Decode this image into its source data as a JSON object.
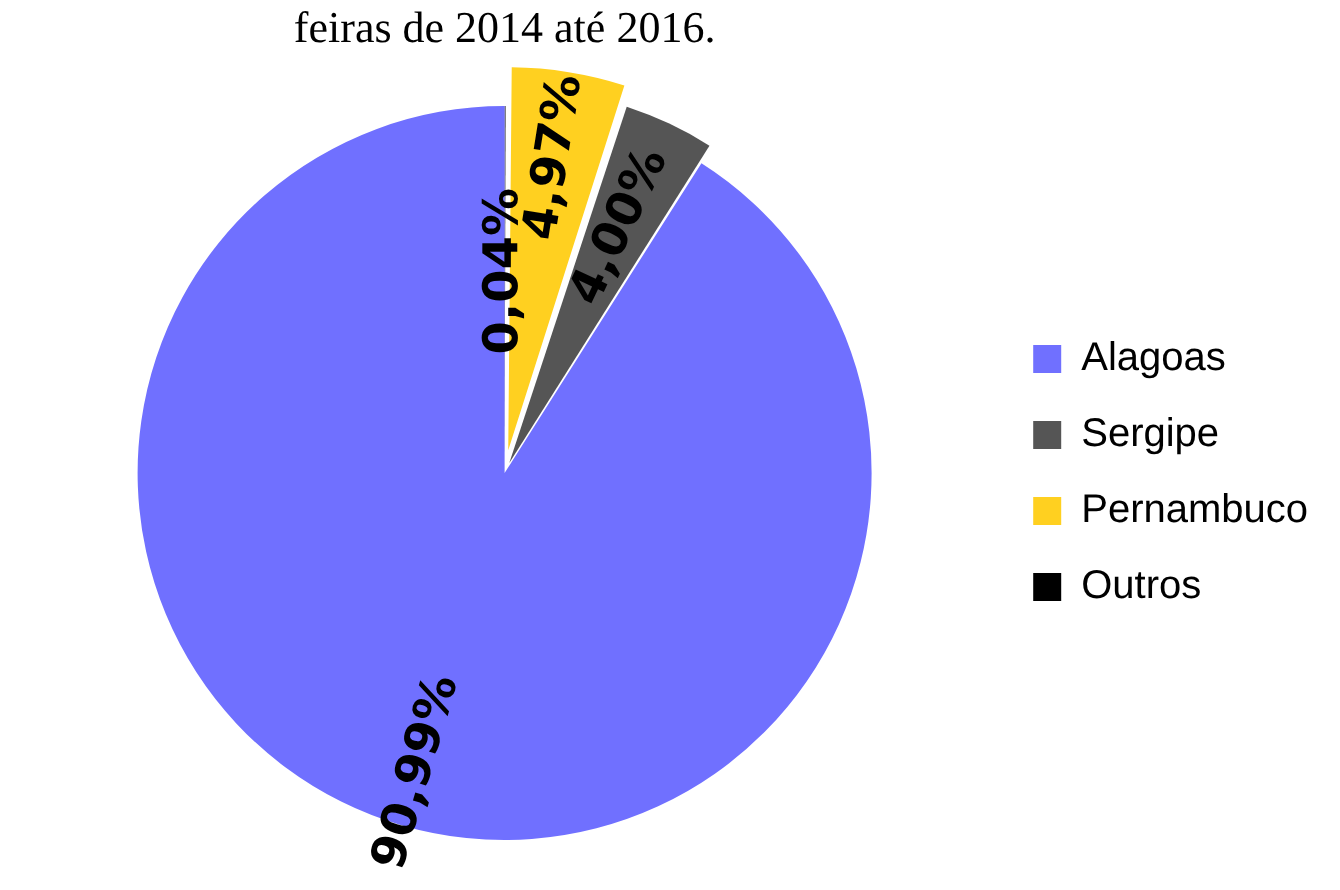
{
  "chart_data": {
    "type": "pie",
    "title": "feiras de 2014 até 2016.",
    "categories": [
      "Alagoas",
      "Sergipe",
      "Pernambuco",
      "Outros"
    ],
    "values": [
      90.99,
      4.0,
      4.97,
      0.04
    ],
    "colors": [
      "#7070ff",
      "#555555",
      "#ffd020",
      "#000000"
    ],
    "value_labels": [
      "90,99%",
      "4,00%",
      "4,97%",
      "0,04%"
    ],
    "legend": "right"
  }
}
